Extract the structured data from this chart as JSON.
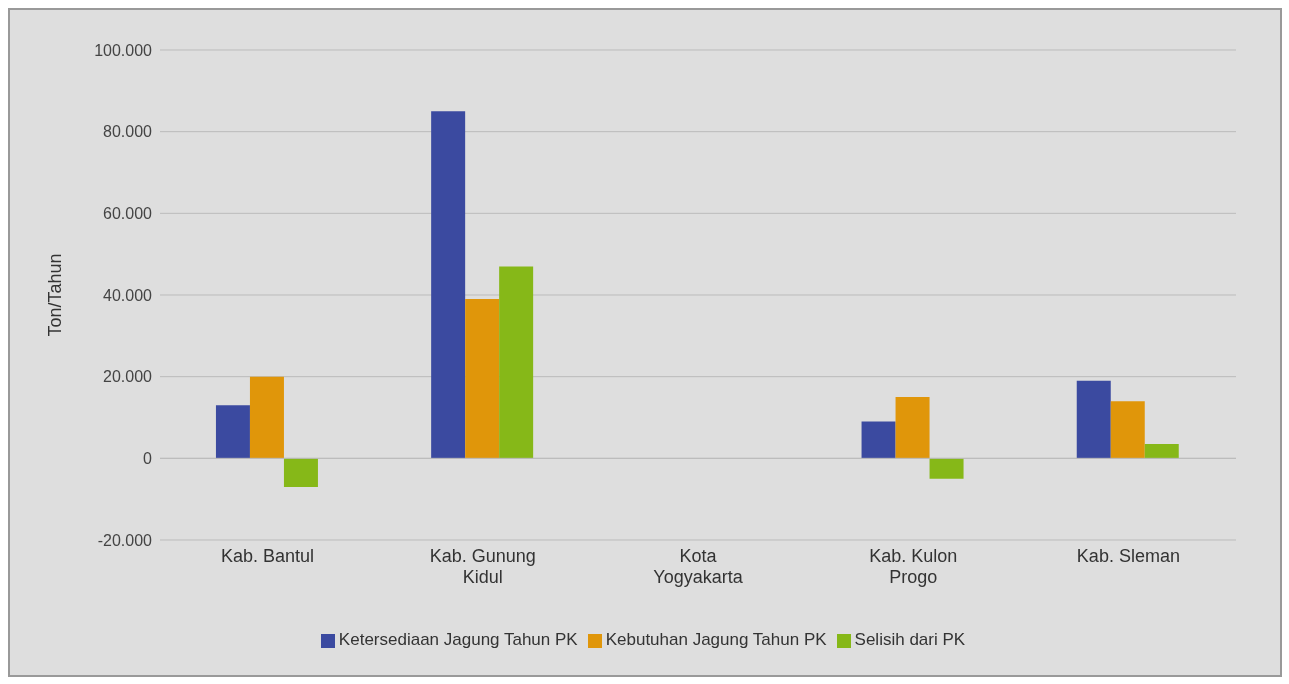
{
  "chart_data": {
    "type": "bar",
    "ylabel": "Ton/Tahun",
    "categories": [
      "Kab. Bantul",
      "Kab. Gunung Kidul",
      "Kota Yogyakarta",
      "Kab. Kulon Progo",
      "Kab. Sleman"
    ],
    "series": [
      {
        "name": "Ketersediaan Jagung Tahun PK",
        "color": "#3b4aa0",
        "values": [
          13000,
          85000,
          null,
          9000,
          19000
        ]
      },
      {
        "name": "Kebutuhan Jagung Tahun PK",
        "color": "#e0960a",
        "values": [
          20000,
          39000,
          null,
          15000,
          14000
        ]
      },
      {
        "name": "Selisih dari PK",
        "color": "#86b818",
        "values": [
          -7000,
          47000,
          null,
          -5000,
          3500
        ]
      }
    ],
    "ylim": [
      -20000,
      100000
    ],
    "yticks": [
      {
        "value": -20000,
        "label": "-20.000"
      },
      0,
      {
        "value": 20000,
        "label": "20.000"
      },
      {
        "value": 40000,
        "label": "40.000"
      },
      {
        "value": 60000,
        "label": "60.000"
      },
      {
        "value": 80000,
        "label": "80.000"
      },
      {
        "value": 100000,
        "label": "100.000"
      }
    ],
    "grid": "y",
    "legend": "bottom"
  }
}
